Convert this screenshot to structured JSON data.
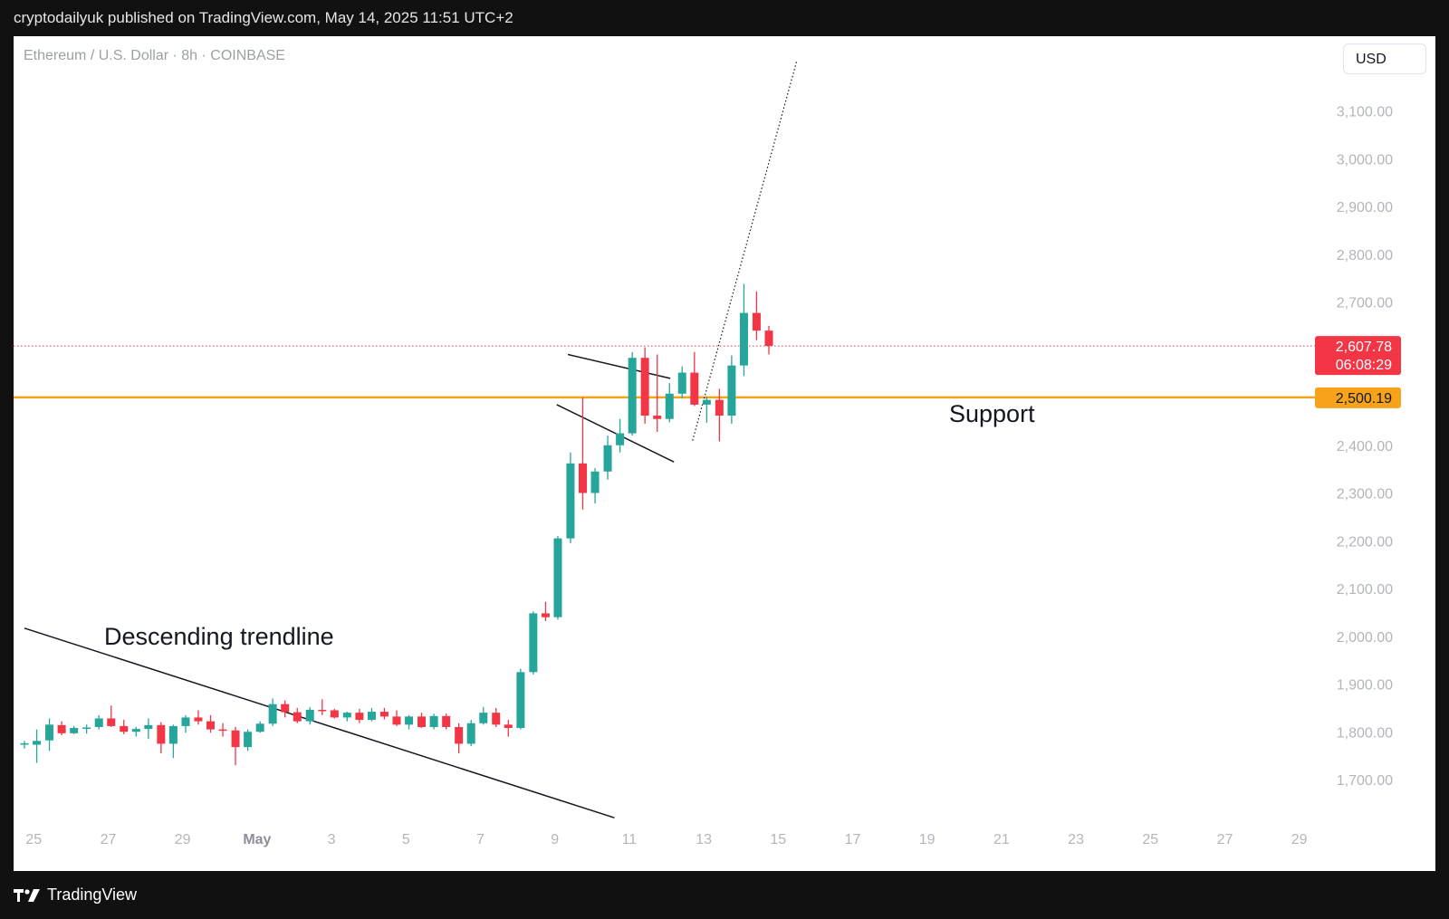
{
  "header": {
    "published": "cryptodailyuk published on TradingView.com, May 14, 2025 11:51 UTC+2"
  },
  "chart": {
    "symbol": "Ethereum / U.S. Dollar · 8h · COINBASE",
    "currency": "USD"
  },
  "footer": {
    "brand": "TradingView",
    "logo_icon": "tradingview-logo-icon"
  },
  "colors": {
    "up": "#26a69a",
    "down": "#f23645",
    "support": "#f7a21b",
    "background": "#ffffff",
    "frame": "#111111",
    "axis_text": "#b2b5be"
  },
  "chart_data": {
    "type": "candlestick",
    "title": "Ethereum / U.S. Dollar · 8h · COINBASE",
    "x_tick_labels": [
      "25",
      "27",
      "29",
      "May",
      "3",
      "5",
      "7",
      "9",
      "11",
      "13",
      "15",
      "17",
      "19",
      "21",
      "23",
      "25",
      "27",
      "29"
    ],
    "y_tick_labels": [
      "1,700.00",
      "1,800.00",
      "1,900.00",
      "2,000.00",
      "2,100.00",
      "2,200.00",
      "2,300.00",
      "2,400.00",
      "2,500.00",
      "2,600.00",
      "2,700.00",
      "2,800.00",
      "2,900.00",
      "3,000.00",
      "3,100.00"
    ],
    "ylim": [
      1580,
      3215
    ],
    "xlim": [
      24.75,
      60.5
    ],
    "x_axis_note": "days from April 25 (April 25 = 25, May 1 = 31)",
    "candles": [
      {
        "x": 24.75,
        "o": 1773,
        "h": 1781,
        "l": 1765,
        "c": 1776
      },
      {
        "x": 25.08,
        "o": 1773,
        "h": 1805,
        "l": 1735,
        "c": 1781
      },
      {
        "x": 25.42,
        "o": 1782,
        "h": 1828,
        "l": 1760,
        "c": 1815
      },
      {
        "x": 25.75,
        "o": 1814,
        "h": 1822,
        "l": 1793,
        "c": 1797
      },
      {
        "x": 26.08,
        "o": 1797,
        "h": 1812,
        "l": 1795,
        "c": 1808
      },
      {
        "x": 26.42,
        "o": 1808,
        "h": 1815,
        "l": 1796,
        "c": 1809
      },
      {
        "x": 26.75,
        "o": 1810,
        "h": 1835,
        "l": 1805,
        "c": 1828
      },
      {
        "x": 27.08,
        "o": 1828,
        "h": 1855,
        "l": 1810,
        "c": 1812
      },
      {
        "x": 27.42,
        "o": 1812,
        "h": 1825,
        "l": 1795,
        "c": 1800
      },
      {
        "x": 27.75,
        "o": 1800,
        "h": 1810,
        "l": 1790,
        "c": 1806
      },
      {
        "x": 28.08,
        "o": 1806,
        "h": 1828,
        "l": 1785,
        "c": 1814
      },
      {
        "x": 28.42,
        "o": 1814,
        "h": 1820,
        "l": 1755,
        "c": 1775
      },
      {
        "x": 28.75,
        "o": 1775,
        "h": 1815,
        "l": 1745,
        "c": 1812
      },
      {
        "x": 29.08,
        "o": 1812,
        "h": 1835,
        "l": 1798,
        "c": 1830
      },
      {
        "x": 29.42,
        "o": 1830,
        "h": 1845,
        "l": 1815,
        "c": 1822
      },
      {
        "x": 29.75,
        "o": 1822,
        "h": 1835,
        "l": 1798,
        "c": 1805
      },
      {
        "x": 30.08,
        "o": 1805,
        "h": 1818,
        "l": 1790,
        "c": 1803
      },
      {
        "x": 30.42,
        "o": 1803,
        "h": 1810,
        "l": 1730,
        "c": 1768
      },
      {
        "x": 30.75,
        "o": 1768,
        "h": 1805,
        "l": 1760,
        "c": 1800
      },
      {
        "x": 31.08,
        "o": 1800,
        "h": 1822,
        "l": 1798,
        "c": 1817
      },
      {
        "x": 31.42,
        "o": 1817,
        "h": 1870,
        "l": 1812,
        "c": 1858
      },
      {
        "x": 31.75,
        "o": 1858,
        "h": 1866,
        "l": 1830,
        "c": 1841
      },
      {
        "x": 32.08,
        "o": 1841,
        "h": 1850,
        "l": 1818,
        "c": 1822
      },
      {
        "x": 32.42,
        "o": 1822,
        "h": 1852,
        "l": 1815,
        "c": 1846
      },
      {
        "x": 32.75,
        "o": 1846,
        "h": 1868,
        "l": 1835,
        "c": 1845
      },
      {
        "x": 33.08,
        "o": 1845,
        "h": 1848,
        "l": 1828,
        "c": 1830
      },
      {
        "x": 33.42,
        "o": 1830,
        "h": 1842,
        "l": 1822,
        "c": 1840
      },
      {
        "x": 33.75,
        "o": 1840,
        "h": 1848,
        "l": 1818,
        "c": 1825
      },
      {
        "x": 34.08,
        "o": 1825,
        "h": 1850,
        "l": 1822,
        "c": 1842
      },
      {
        "x": 34.42,
        "o": 1842,
        "h": 1850,
        "l": 1826,
        "c": 1832
      },
      {
        "x": 34.75,
        "o": 1832,
        "h": 1845,
        "l": 1812,
        "c": 1815
      },
      {
        "x": 35.08,
        "o": 1815,
        "h": 1835,
        "l": 1805,
        "c": 1832
      },
      {
        "x": 35.42,
        "o": 1832,
        "h": 1840,
        "l": 1808,
        "c": 1810
      },
      {
        "x": 35.75,
        "o": 1810,
        "h": 1838,
        "l": 1805,
        "c": 1833
      },
      {
        "x": 36.08,
        "o": 1833,
        "h": 1838,
        "l": 1805,
        "c": 1810
      },
      {
        "x": 36.42,
        "o": 1810,
        "h": 1818,
        "l": 1755,
        "c": 1775
      },
      {
        "x": 36.75,
        "o": 1775,
        "h": 1825,
        "l": 1770,
        "c": 1818
      },
      {
        "x": 37.08,
        "o": 1818,
        "h": 1852,
        "l": 1815,
        "c": 1840
      },
      {
        "x": 37.42,
        "o": 1840,
        "h": 1850,
        "l": 1810,
        "c": 1815
      },
      {
        "x": 37.75,
        "o": 1815,
        "h": 1825,
        "l": 1790,
        "c": 1808
      },
      {
        "x": 38.08,
        "o": 1808,
        "h": 1932,
        "l": 1805,
        "c": 1925
      },
      {
        "x": 38.42,
        "o": 1925,
        "h": 2052,
        "l": 1920,
        "c": 2048
      },
      {
        "x": 38.75,
        "o": 2048,
        "h": 2072,
        "l": 2032,
        "c": 2040
      },
      {
        "x": 39.08,
        "o": 2040,
        "h": 2210,
        "l": 2035,
        "c": 2205
      },
      {
        "x": 39.42,
        "o": 2205,
        "h": 2385,
        "l": 2195,
        "c": 2362
      },
      {
        "x": 39.75,
        "o": 2362,
        "h": 2500,
        "l": 2265,
        "c": 2300
      },
      {
        "x": 40.08,
        "o": 2300,
        "h": 2352,
        "l": 2278,
        "c": 2345
      },
      {
        "x": 40.42,
        "o": 2345,
        "h": 2420,
        "l": 2328,
        "c": 2400
      },
      {
        "x": 40.75,
        "o": 2400,
        "h": 2455,
        "l": 2385,
        "c": 2425
      },
      {
        "x": 41.08,
        "o": 2425,
        "h": 2595,
        "l": 2420,
        "c": 2583
      },
      {
        "x": 41.42,
        "o": 2583,
        "h": 2605,
        "l": 2445,
        "c": 2462
      },
      {
        "x": 41.75,
        "o": 2462,
        "h": 2590,
        "l": 2428,
        "c": 2455
      },
      {
        "x": 42.08,
        "o": 2455,
        "h": 2530,
        "l": 2448,
        "c": 2508
      },
      {
        "x": 42.42,
        "o": 2508,
        "h": 2565,
        "l": 2498,
        "c": 2552
      },
      {
        "x": 42.75,
        "o": 2552,
        "h": 2595,
        "l": 2482,
        "c": 2485
      },
      {
        "x": 43.08,
        "o": 2485,
        "h": 2502,
        "l": 2447,
        "c": 2495
      },
      {
        "x": 43.42,
        "o": 2495,
        "h": 2518,
        "l": 2408,
        "c": 2462
      },
      {
        "x": 43.75,
        "o": 2462,
        "h": 2588,
        "l": 2445,
        "c": 2567
      },
      {
        "x": 44.08,
        "o": 2567,
        "h": 2738,
        "l": 2545,
        "c": 2677
      },
      {
        "x": 44.42,
        "o": 2677,
        "h": 2722,
        "l": 2620,
        "c": 2640
      },
      {
        "x": 44.75,
        "o": 2640,
        "h": 2650,
        "l": 2590,
        "c": 2608
      }
    ],
    "annotations": [
      {
        "text": "Descending trendline",
        "from": [
          24.75,
          2017
        ],
        "to": [
          40.6,
          1620
        ]
      },
      {
        "text": "Support",
        "price": 2500.19
      },
      {
        "text": "",
        "from": [
          39.35,
          2590
        ],
        "to": [
          42.1,
          2540
        ]
      },
      {
        "text": "",
        "from": [
          39.05,
          2485
        ],
        "to": [
          42.2,
          2365
        ]
      },
      {
        "text": "",
        "from": [
          42.7,
          2410
        ],
        "to": [
          45.5,
          3205
        ],
        "style": "dotted"
      }
    ],
    "last_price": {
      "value": "2,607.78",
      "countdown": "06:08:29"
    },
    "support_level": {
      "value": "2,500.19"
    },
    "grid": false
  }
}
